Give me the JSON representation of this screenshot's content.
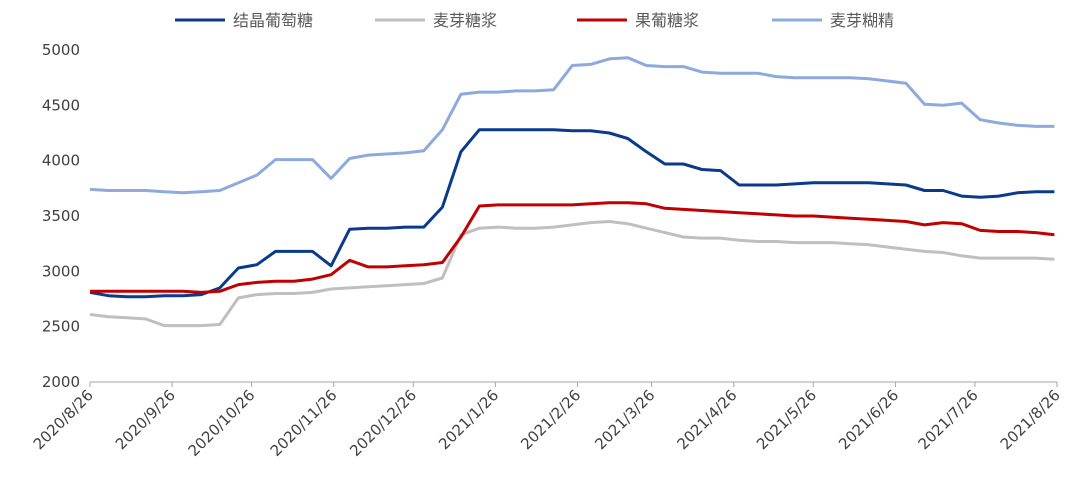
{
  "chart_data": {
    "type": "line",
    "x": [
      "2020/8/26",
      "2020/9/2",
      "2020/9/9",
      "2020/9/16",
      "2020/9/23",
      "2020/9/30",
      "2020/10/7",
      "2020/10/14",
      "2020/10/21",
      "2020/10/28",
      "2020/11/4",
      "2020/11/11",
      "2020/11/18",
      "2020/11/25",
      "2020/12/2",
      "2020/12/9",
      "2020/12/16",
      "2020/12/23",
      "2020/12/30",
      "2021/1/6",
      "2021/1/13",
      "2021/1/20",
      "2021/1/27",
      "2021/2/3",
      "2021/2/10",
      "2021/2/17",
      "2021/2/24",
      "2021/3/3",
      "2021/3/10",
      "2021/3/17",
      "2021/3/24",
      "2021/3/31",
      "2021/4/7",
      "2021/4/14",
      "2021/4/21",
      "2021/4/28",
      "2021/5/5",
      "2021/5/12",
      "2021/5/19",
      "2021/5/26",
      "2021/6/2",
      "2021/6/9",
      "2021/6/16",
      "2021/6/23",
      "2021/6/30",
      "2021/7/7",
      "2021/7/14",
      "2021/7/21",
      "2021/7/28",
      "2021/8/4",
      "2021/8/11",
      "2021/8/18",
      "2021/8/25"
    ],
    "series": [
      {
        "name": "结晶葡萄糖",
        "color": "#0b3a8c",
        "values": [
          2810,
          2780,
          2770,
          2770,
          2780,
          2780,
          2790,
          2850,
          3030,
          3060,
          3180,
          3180,
          3180,
          3050,
          3380,
          3390,
          3390,
          3400,
          3400,
          3580,
          4080,
          4280,
          4280,
          4280,
          4280,
          4280,
          4270,
          4270,
          4250,
          4200,
          4080,
          3970,
          3970,
          3920,
          3910,
          3780,
          3780,
          3780,
          3790,
          3800,
          3800,
          3800,
          3800,
          3790,
          3780,
          3730,
          3730,
          3680,
          3670,
          3680,
          3710,
          3720,
          3720
        ]
      },
      {
        "name": "麦芽糖浆",
        "color": "#bfbfbf",
        "values": [
          2610,
          2590,
          2580,
          2570,
          2510,
          2510,
          2510,
          2520,
          2760,
          2790,
          2800,
          2800,
          2810,
          2840,
          2850,
          2860,
          2870,
          2880,
          2890,
          2940,
          3330,
          3390,
          3400,
          3390,
          3390,
          3400,
          3420,
          3440,
          3450,
          3430,
          3390,
          3350,
          3310,
          3300,
          3300,
          3280,
          3270,
          3270,
          3260,
          3260,
          3260,
          3250,
          3240,
          3220,
          3200,
          3180,
          3170,
          3140,
          3120,
          3120,
          3120,
          3120,
          3110
        ]
      },
      {
        "name": "果葡糖浆",
        "color": "#c00000",
        "values": [
          2820,
          2820,
          2820,
          2820,
          2820,
          2820,
          2810,
          2820,
          2880,
          2900,
          2910,
          2910,
          2930,
          2970,
          3100,
          3040,
          3040,
          3050,
          3060,
          3080,
          3310,
          3590,
          3600,
          3600,
          3600,
          3600,
          3600,
          3610,
          3620,
          3620,
          3610,
          3570,
          3560,
          3550,
          3540,
          3530,
          3520,
          3510,
          3500,
          3500,
          3490,
          3480,
          3470,
          3460,
          3450,
          3420,
          3440,
          3430,
          3370,
          3360,
          3360,
          3350,
          3330
        ]
      },
      {
        "name": "麦芽糊精",
        "color": "#8ea9db",
        "values": [
          3740,
          3730,
          3730,
          3730,
          3720,
          3710,
          3720,
          3730,
          3800,
          3870,
          4010,
          4010,
          4010,
          3840,
          4020,
          4050,
          4060,
          4070,
          4090,
          4280,
          4600,
          4620,
          4620,
          4630,
          4630,
          4640,
          4860,
          4870,
          4920,
          4930,
          4860,
          4850,
          4850,
          4800,
          4790,
          4790,
          4790,
          4760,
          4750,
          4750,
          4750,
          4750,
          4740,
          4720,
          4700,
          4510,
          4500,
          4520,
          4370,
          4340,
          4320,
          4310,
          4310
        ]
      }
    ],
    "xlim": [
      "2020/8/26",
      "2021/8/26"
    ],
    "xticks": [
      "2020/8/26",
      "2020/9/26",
      "2020/10/26",
      "2020/11/26",
      "2020/12/26",
      "2021/1/26",
      "2021/2/26",
      "2021/3/26",
      "2021/4/26",
      "2021/5/26",
      "2021/6/26",
      "2021/7/26",
      "2021/8/26"
    ],
    "ylim": [
      2000,
      5000
    ],
    "yticks": [
      2000,
      2500,
      3000,
      3500,
      4000,
      4500,
      5000
    ],
    "grid": false,
    "legend": "top"
  }
}
